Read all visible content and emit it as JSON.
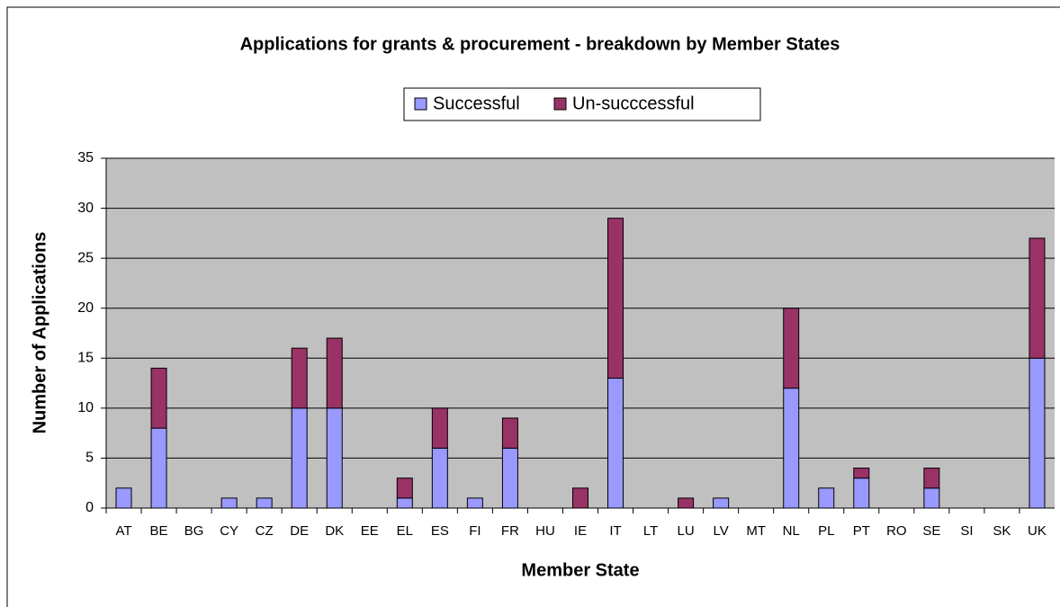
{
  "chart_data": {
    "type": "stacked_bar",
    "title": "Applications for grants & procurement - breakdown by Member States",
    "x_label": "Member State",
    "y_label": "Number of Applications",
    "categories": [
      "AT",
      "BE",
      "BG",
      "CY",
      "CZ",
      "DE",
      "DK",
      "EE",
      "EL",
      "ES",
      "FI",
      "FR",
      "HU",
      "IE",
      "IT",
      "LT",
      "LU",
      "LV",
      "MT",
      "NL",
      "PL",
      "PT",
      "RO",
      "SE",
      "SI",
      "SK",
      "UK"
    ],
    "series": [
      {
        "name": "Successful",
        "color": "#9999ff",
        "values": [
          2,
          8,
          0,
          1,
          1,
          10,
          10,
          0,
          1,
          6,
          1,
          6,
          0,
          0,
          13,
          0,
          0,
          1,
          0,
          12,
          2,
          3,
          0,
          2,
          0,
          0,
          15
        ]
      },
      {
        "name": "Un-succcessful",
        "color": "#993366",
        "values": [
          0,
          6,
          0,
          0,
          0,
          6,
          7,
          0,
          2,
          4,
          0,
          3,
          0,
          2,
          16,
          0,
          1,
          0,
          0,
          8,
          0,
          1,
          0,
          2,
          0,
          0,
          12
        ]
      }
    ],
    "ylim": [
      0,
      35
    ],
    "yticks": [
      0,
      5,
      10,
      15,
      20,
      25,
      30,
      35
    ],
    "grid": true,
    "legend": "top"
  }
}
